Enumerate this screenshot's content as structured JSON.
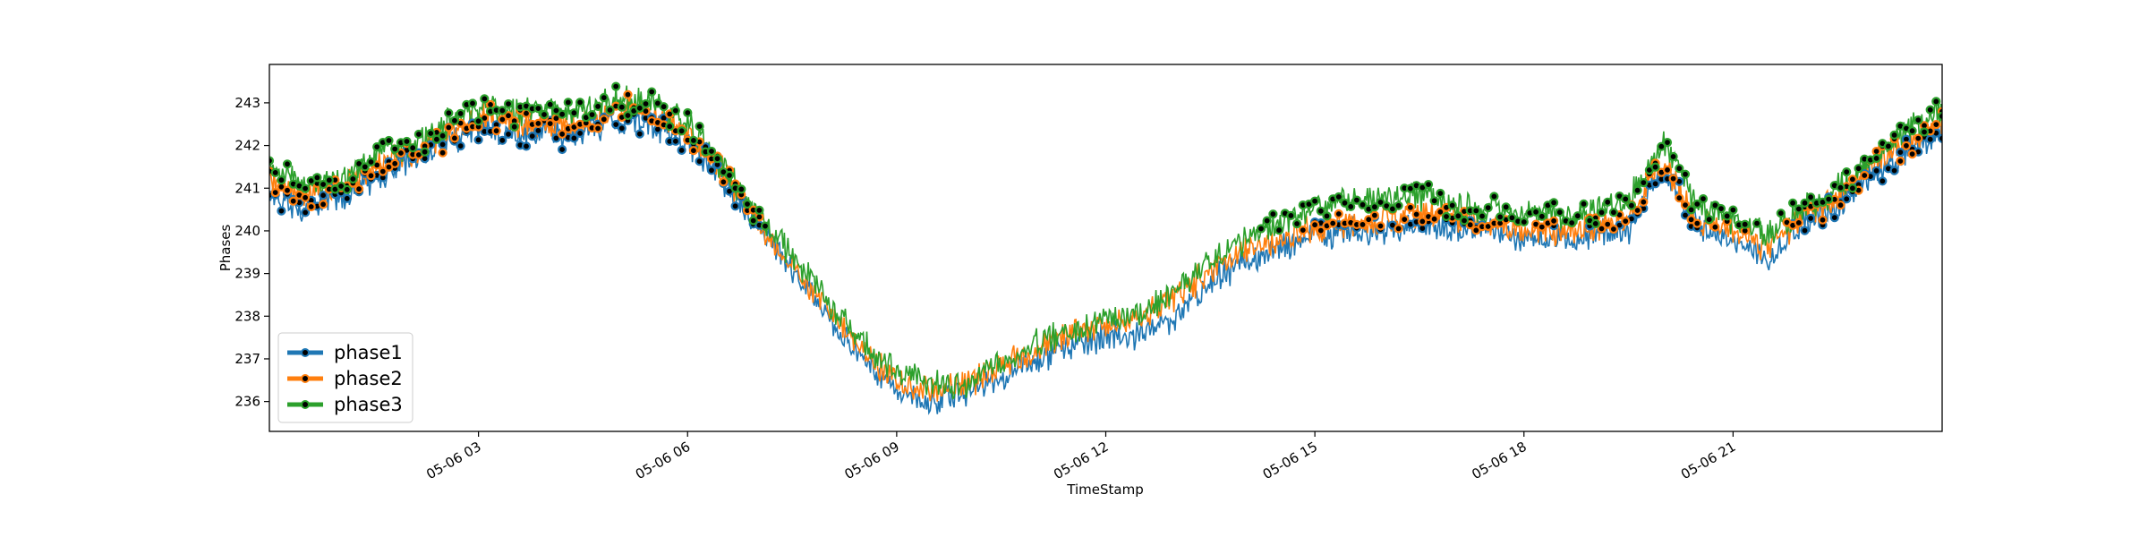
{
  "chart_data": {
    "type": "line",
    "title": "",
    "xlabel": "TimeStamp",
    "ylabel": "Phases",
    "x_ticks": [
      "05-06 03",
      "05-06 06",
      "05-06 09",
      "05-06 12",
      "05-06 15",
      "05-06 18",
      "05-06 21"
    ],
    "y_ticks": [
      236,
      237,
      238,
      239,
      240,
      241,
      242,
      243
    ],
    "xlim": [
      "05-06 00:00",
      "05-07 00:00"
    ],
    "ylim": [
      235.3,
      243.9
    ],
    "grid": false,
    "legend_position": "lower-left",
    "marker_threshold": 240.0,
    "x_hours": [
      0,
      0.5,
      1,
      1.5,
      2,
      2.5,
      3,
      3.5,
      4,
      4.5,
      5,
      5.5,
      6,
      6.5,
      7,
      7.5,
      8,
      8.5,
      9,
      9.5,
      10,
      10.5,
      11,
      11.5,
      12,
      12.5,
      13,
      13.5,
      14,
      14.5,
      15,
      15.5,
      16,
      16.5,
      17,
      17.5,
      18,
      18.5,
      19,
      19.5,
      20,
      20.5,
      21,
      21.5,
      22,
      22.5,
      23,
      23.5,
      24
    ],
    "series": [
      {
        "name": "phase1",
        "color": "#1f77b4",
        "values": [
          240.8,
          240.5,
          240.8,
          241.2,
          241.6,
          242.0,
          242.4,
          242.3,
          242.3,
          242.3,
          242.6,
          242.5,
          242.1,
          241.2,
          240.1,
          239.0,
          238.0,
          237.0,
          236.3,
          236.0,
          236.2,
          236.6,
          237.0,
          237.3,
          237.5,
          237.6,
          238.0,
          238.8,
          239.3,
          239.6,
          239.9,
          240.0,
          240.0,
          240.1,
          240.1,
          240.0,
          239.8,
          239.8,
          239.9,
          240.0,
          241.5,
          240.1,
          239.8,
          239.3,
          240.1,
          240.6,
          241.3,
          241.9,
          242.3
        ]
      },
      {
        "name": "phase2",
        "color": "#ff7f0e",
        "values": [
          241.2,
          240.8,
          241.0,
          241.5,
          241.8,
          242.2,
          242.7,
          242.5,
          242.5,
          242.5,
          242.9,
          242.8,
          242.3,
          241.4,
          240.2,
          239.2,
          238.2,
          237.2,
          236.5,
          236.2,
          236.4,
          236.8,
          237.2,
          237.6,
          237.8,
          238.0,
          238.4,
          239.1,
          239.5,
          239.8,
          240.1,
          240.2,
          240.3,
          240.4,
          240.3,
          240.2,
          240.0,
          240.0,
          240.1,
          240.3,
          241.6,
          240.2,
          240.0,
          239.6,
          240.3,
          240.8,
          241.5,
          242.1,
          242.5
        ]
      },
      {
        "name": "phase3",
        "color": "#2ca02c",
        "values": [
          241.5,
          241.1,
          241.2,
          241.7,
          242.0,
          242.5,
          242.9,
          242.8,
          242.8,
          242.8,
          243.1,
          243.0,
          242.5,
          241.5,
          240.3,
          239.4,
          238.4,
          237.4,
          236.7,
          236.4,
          236.4,
          236.9,
          237.4,
          237.7,
          237.9,
          238.1,
          238.6,
          239.3,
          239.8,
          240.2,
          240.5,
          240.7,
          240.8,
          240.8,
          240.6,
          240.5,
          240.4,
          240.4,
          240.5,
          240.8,
          242.0,
          240.6,
          240.2,
          239.9,
          240.5,
          241.0,
          241.7,
          242.3,
          242.8
        ]
      }
    ]
  }
}
